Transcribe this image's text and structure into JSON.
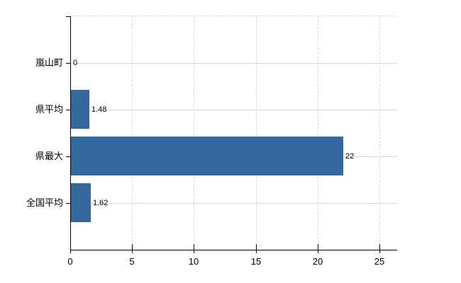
{
  "chart_data": {
    "type": "bar",
    "orientation": "horizontal",
    "categories": [
      "嵐山町",
      "県平均",
      "県最大",
      "全国平均"
    ],
    "values": [
      0,
      1.48,
      22,
      1.62
    ],
    "value_labels": [
      "0",
      "1.48",
      "22",
      "1.62"
    ],
    "x_ticks": [
      0,
      5,
      10,
      15,
      20,
      25
    ],
    "x_tick_labels": [
      "0",
      "5",
      "10",
      "15",
      "20",
      "25"
    ],
    "xlim": [
      0,
      26.43
    ],
    "grid": true,
    "legend": false,
    "gridline_style": {
      "vertical": "dashed",
      "horizontal": "solid",
      "plot_top_border": "dashed"
    },
    "colors": {
      "bar": "#35679f",
      "grid": "#d9d9d9",
      "axis": "#000000",
      "text": "#000000",
      "background": "#ffffff"
    }
  }
}
